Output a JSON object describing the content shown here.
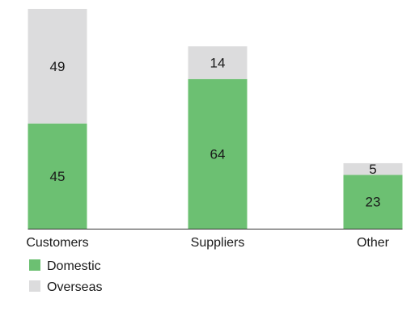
{
  "chart_data": {
    "type": "bar",
    "stacked": true,
    "categories": [
      "Customers",
      "Suppliers",
      "Other"
    ],
    "series": [
      {
        "name": "Domestic",
        "values": [
          45,
          64,
          23
        ],
        "color": "#6cc072"
      },
      {
        "name": "Overseas",
        "values": [
          49,
          14,
          5
        ],
        "color": "#dcdcdd"
      }
    ],
    "ylim": [
      0,
      94
    ],
    "grid": false,
    "legend": "bottom-left",
    "axis_color": "#333333"
  }
}
